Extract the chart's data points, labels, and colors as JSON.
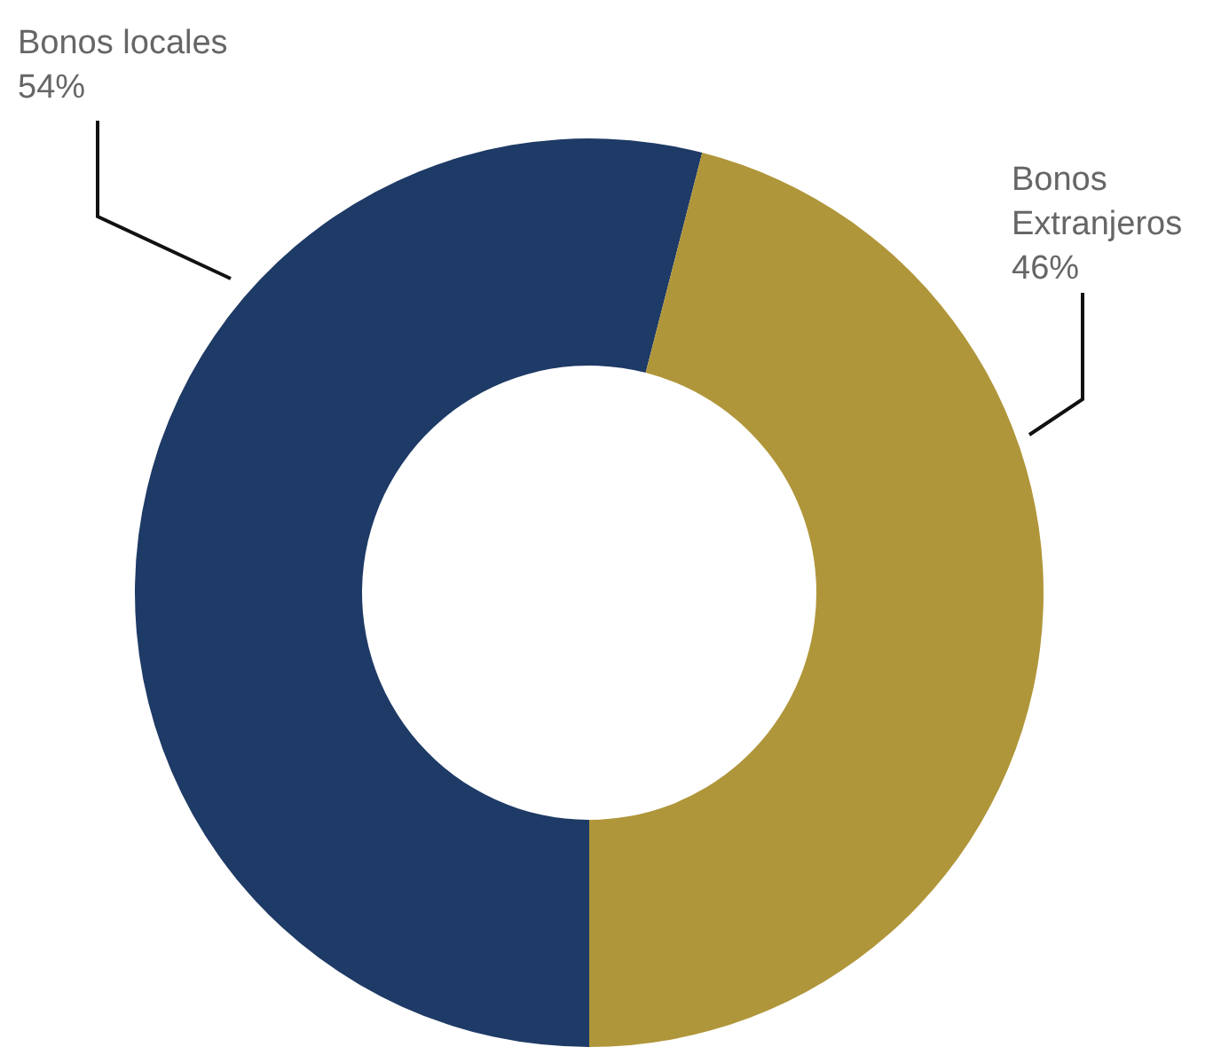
{
  "chart_data": {
    "type": "donut",
    "categories": [
      "Bonos locales",
      "Bonos Extranjeros"
    ],
    "values": [
      54,
      46
    ],
    "colors": [
      "#1e3a66",
      "#b0963a"
    ],
    "value_labels": [
      "54%",
      "46%"
    ]
  }
}
